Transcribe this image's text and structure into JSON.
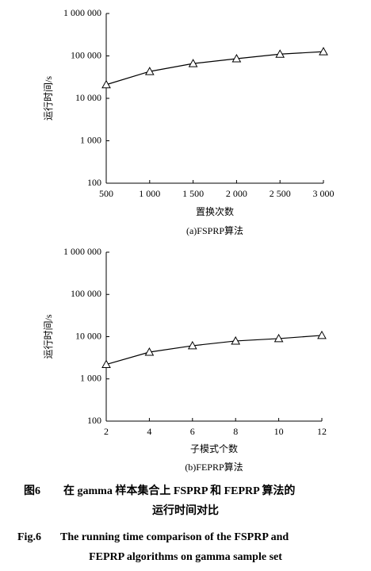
{
  "chart_data": [
    {
      "type": "line",
      "log_scale": "y",
      "marker": "triangle",
      "color": "#000000",
      "x": [
        500,
        1000,
        1500,
        2000,
        2500,
        3000
      ],
      "values": [
        21000,
        43000,
        66000,
        86000,
        110000,
        126000
      ],
      "xlim": [
        500,
        3000
      ],
      "xticks": [
        500,
        {
          "value": 1000,
          "label": "1 000"
        },
        {
          "value": 1500,
          "label": "1 500"
        },
        {
          "value": 2000,
          "label": "2 000"
        },
        {
          "value": 2500,
          "label": "2 500"
        },
        {
          "value": 3000,
          "label": "3 000"
        }
      ],
      "ylim": [
        100,
        1000000
      ],
      "yticks": [
        100,
        {
          "value": 1000,
          "label": "1 000"
        },
        {
          "value": 10000,
          "label": "10 000"
        },
        {
          "value": 100000,
          "label": "100 000"
        },
        {
          "value": 1000000,
          "label": "1 000 000"
        }
      ],
      "x_label": "置换次数",
      "y_label": "运行时间/s",
      "subtitle": "(a)FSPRP算法"
    },
    {
      "type": "line",
      "log_scale": "y",
      "marker": "triangle",
      "color": "#000000",
      "x": [
        2,
        4,
        6,
        8,
        10,
        12
      ],
      "values": [
        2200,
        4300,
        6100,
        7900,
        9000,
        10700
      ],
      "xlim": [
        2,
        12
      ],
      "xticks": [
        2,
        4,
        6,
        8,
        10,
        12
      ],
      "ylim": [
        100,
        1000000
      ],
      "yticks": [
        100,
        {
          "value": 1000,
          "label": "1 000"
        },
        {
          "value": 10000,
          "label": "10 000"
        },
        {
          "value": 100000,
          "label": "100 000"
        },
        {
          "value": 1000000,
          "label": "1 000 000"
        }
      ],
      "x_label": "子模式个数",
      "y_label": "运行时间/s",
      "subtitle": "(b)FEPRP算法"
    }
  ],
  "caption": {
    "cn_label": "图6",
    "cn_line1": "在 gamma 样本集合上 FSPRP 和 FEPRP 算法的",
    "cn_line2": "运行时间对比",
    "en_label": "Fig.6",
    "en_line1": "The running time comparison of the FSPRP and",
    "en_line2": "FEPRP algorithms on gamma sample set"
  }
}
